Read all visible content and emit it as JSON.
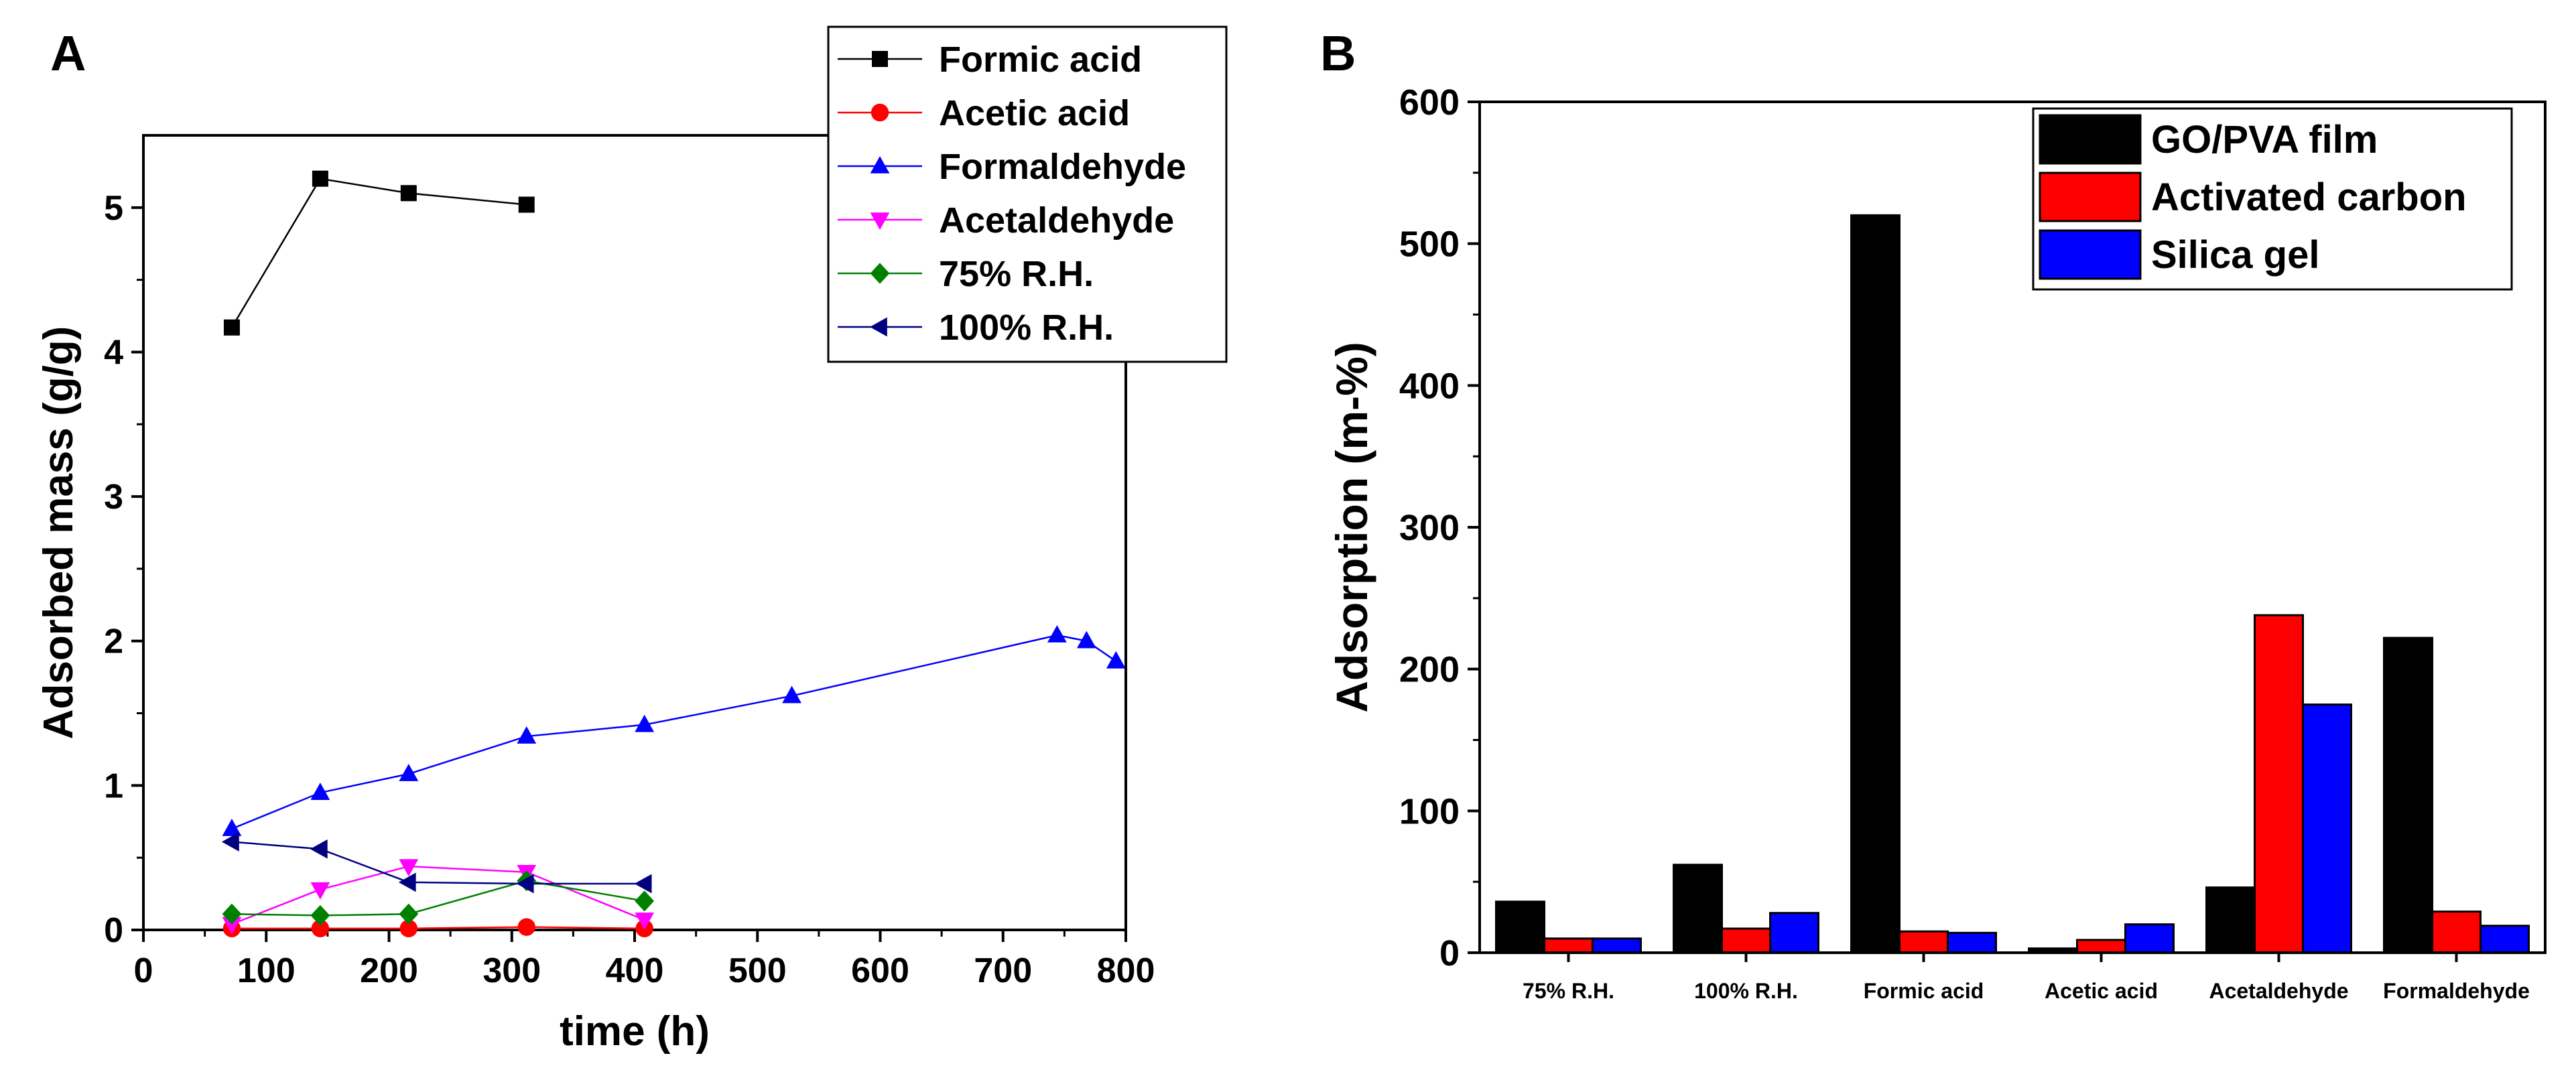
{
  "chart_data": [
    {
      "panel_label": "A",
      "type": "line",
      "xlabel": "time (h)",
      "ylabel": "Adsorbed mass (g/g)",
      "xlim": [
        0,
        800
      ],
      "ylim": [
        0,
        5.5
      ],
      "xticks": [
        0,
        100,
        200,
        300,
        400,
        500,
        600,
        700,
        800
      ],
      "yticks": [
        0,
        1,
        2,
        3,
        4,
        5
      ],
      "legend_position": "top-right",
      "series": [
        {
          "name": "Formic acid",
          "color": "#000000",
          "marker": "square",
          "x": [
            72,
            144,
            216,
            312
          ],
          "y": [
            4.17,
            5.2,
            5.1,
            5.02
          ]
        },
        {
          "name": "Acetic acid",
          "color": "#ff0000",
          "marker": "circle",
          "x": [
            72,
            144,
            216,
            312,
            408
          ],
          "y": [
            0.01,
            0.01,
            0.01,
            0.02,
            0.01
          ]
        },
        {
          "name": "Formaldehyde",
          "color": "#0000ff",
          "marker": "triangle-up",
          "x": [
            72,
            144,
            216,
            312,
            408,
            528,
            744,
            768,
            792
          ],
          "y": [
            0.7,
            0.95,
            1.08,
            1.34,
            1.42,
            1.62,
            2.04,
            2.0,
            1.86
          ]
        },
        {
          "name": "Acetaldehyde",
          "color": "#ff00ff",
          "marker": "triangle-down",
          "x": [
            72,
            144,
            216,
            312,
            408
          ],
          "y": [
            0.04,
            0.28,
            0.44,
            0.4,
            0.07
          ]
        },
        {
          "name": "75% R.H.",
          "color": "#008000",
          "marker": "diamond",
          "x": [
            72,
            144,
            216,
            312,
            408
          ],
          "y": [
            0.11,
            0.1,
            0.11,
            0.34,
            0.2
          ]
        },
        {
          "name": "100% R.H.",
          "color": "#000080",
          "marker": "triangle-left",
          "x": [
            72,
            144,
            216,
            312,
            408
          ],
          "y": [
            0.61,
            0.56,
            0.33,
            0.32,
            0.32
          ]
        }
      ]
    },
    {
      "panel_label": "B",
      "type": "bar",
      "xlabel": "",
      "ylabel": "Adsorption (m-%)",
      "ylim": [
        0,
        600
      ],
      "yticks": [
        0,
        100,
        200,
        300,
        400,
        500,
        600
      ],
      "legend_position": "top-right",
      "categories": [
        "75% R.H.",
        "100% R.H.",
        "Formic acid",
        "Acetic acid",
        "Acetaldehyde",
        "Formaldehyde"
      ],
      "series": [
        {
          "name": "GO/PVA film",
          "color": "#000000",
          "values": [
            36,
            62,
            520,
            3,
            46,
            222
          ]
        },
        {
          "name": "Activated carbon",
          "color": "#ff0000",
          "values": [
            10,
            17,
            15,
            9,
            238,
            29
          ]
        },
        {
          "name": "Silica gel",
          "color": "#0000ff",
          "values": [
            10,
            28,
            14,
            20,
            175,
            19
          ]
        }
      ]
    }
  ]
}
